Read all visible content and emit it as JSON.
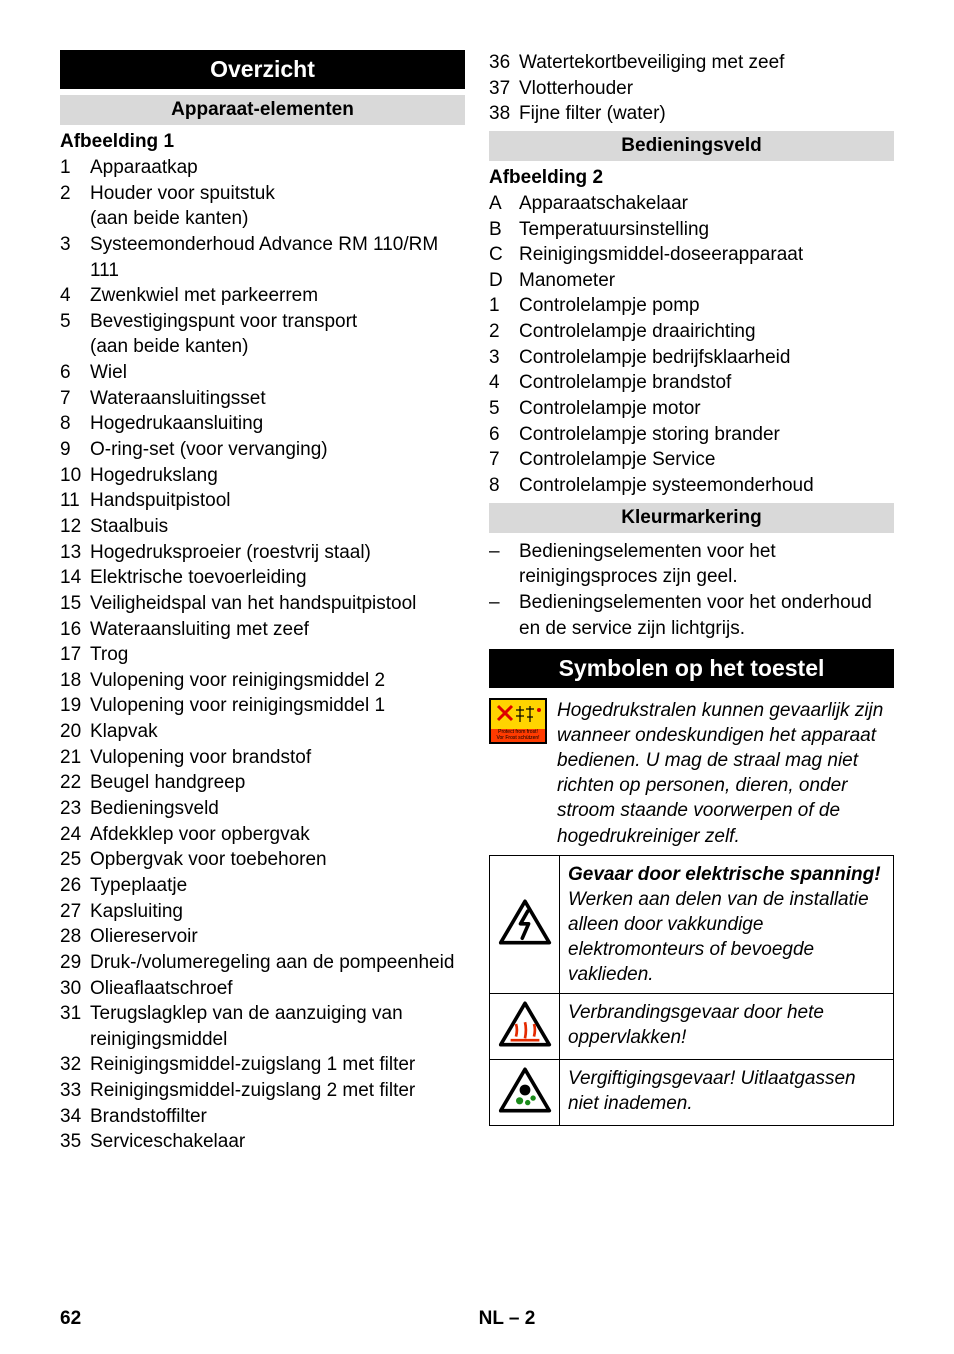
{
  "col1": {
    "overzicht": "Overzicht",
    "apparaat_elementen": "Apparaat-elementen",
    "afbeelding1": "Afbeelding 1",
    "items": [
      {
        "n": "1",
        "t": "Apparaatkap"
      },
      {
        "n": "2",
        "t": "Houder voor spuitstuk\n(aan beide kanten)"
      },
      {
        "n": "3",
        "t": "Systeemonderhoud Advance RM 110/RM 111"
      },
      {
        "n": "4",
        "t": "Zwenkwiel met parkeerrem"
      },
      {
        "n": "5",
        "t": "Bevestigingspunt voor transport\n(aan beide kanten)"
      },
      {
        "n": "6",
        "t": "Wiel"
      },
      {
        "n": "7",
        "t": "Wateraansluitingsset"
      },
      {
        "n": "8",
        "t": "Hogedrukaansluiting"
      },
      {
        "n": "9",
        "t": "O-ring-set (voor vervanging)"
      },
      {
        "n": "10",
        "t": "Hogedrukslang"
      },
      {
        "n": "11",
        "t": "Handspuitpistool"
      },
      {
        "n": "12",
        "t": "Staalbuis"
      },
      {
        "n": "13",
        "t": "Hogedruksproeier (roestvrij staal)"
      },
      {
        "n": "14",
        "t": "Elektrische toevoerleiding"
      },
      {
        "n": "15",
        "t": "Veiligheidspal van het handspuitpistool"
      },
      {
        "n": "16",
        "t": "Wateraansluiting met zeef"
      },
      {
        "n": "17",
        "t": "Trog"
      },
      {
        "n": "18",
        "t": "Vulopening voor reinigingsmiddel 2"
      },
      {
        "n": "19",
        "t": "Vulopening voor reinigingsmiddel 1"
      },
      {
        "n": "20",
        "t": "Klapvak"
      },
      {
        "n": "21",
        "t": "Vulopening voor brandstof"
      },
      {
        "n": "22",
        "t": "Beugel handgreep"
      },
      {
        "n": "23",
        "t": "Bedieningsveld"
      },
      {
        "n": "24",
        "t": "Afdekklep voor opbergvak"
      },
      {
        "n": "25",
        "t": "Opbergvak voor toebehoren"
      },
      {
        "n": "26",
        "t": "Typeplaatje"
      },
      {
        "n": "27",
        "t": "Kapsluiting"
      },
      {
        "n": "28",
        "t": "Oliereservoir"
      },
      {
        "n": "29",
        "t": "Druk-/volumeregeling aan de pompeenheid"
      },
      {
        "n": "30",
        "t": "Olieaflaatschroef"
      },
      {
        "n": "31",
        "t": "Terugslagklep van de aanzuiging van reinigingsmiddel"
      },
      {
        "n": "32",
        "t": "Reinigingsmiddel-zuigslang 1 met filter"
      },
      {
        "n": "33",
        "t": "Reinigingsmiddel-zuigslang 2 met filter"
      },
      {
        "n": "34",
        "t": "Brandstoffilter"
      },
      {
        "n": "35",
        "t": "Serviceschakelaar"
      }
    ]
  },
  "col2": {
    "top_items": [
      {
        "n": "36",
        "t": "Watertekortbeveiliging met zeef"
      },
      {
        "n": "37",
        "t": "Vlotterhouder"
      },
      {
        "n": "38",
        "t": "Fijne filter (water)"
      }
    ],
    "bedieningsveld": "Bedieningsveld",
    "afbeelding2": "Afbeelding 2",
    "items2": [
      {
        "n": "A",
        "t": "Apparaatschakelaar"
      },
      {
        "n": "B",
        "t": "Temperatuursinstelling"
      },
      {
        "n": "C",
        "t": "Reinigingsmiddel-doseerapparaat"
      },
      {
        "n": "D",
        "t": "Manometer"
      },
      {
        "n": "1",
        "t": "Controlelampje pomp"
      },
      {
        "n": "2",
        "t": "Controlelampje draairichting"
      },
      {
        "n": "3",
        "t": "Controlelampje bedrijfsklaarheid"
      },
      {
        "n": "4",
        "t": "Controlelampje brandstof"
      },
      {
        "n": "5",
        "t": "Controlelampje motor"
      },
      {
        "n": "6",
        "t": "Controlelampje storing brander"
      },
      {
        "n": "7",
        "t": "Controlelampje Service"
      },
      {
        "n": "8",
        "t": "Controlelampje systeemonderhoud"
      }
    ],
    "kleurmarkering": "Kleurmarkering",
    "dash1": "Bedieningselementen voor het reinigingsproces zijn geel.",
    "dash2": "Bedieningselementen voor het onderhoud en de service zijn lichtgrijs.",
    "symbolen": "Symbolen op het toestel",
    "jet_text": "Hogedrukstralen kunnen gevaarlijk zijn wanneer ondeskundigen het apparaat bedienen. U mag de straal mag niet richten op personen, dieren, onder stroom staande voorwerpen of de hogedrukreiniger zelf.",
    "warn1_title": "Gevaar door elektrische spanning!",
    "warn1_body": "Werken aan delen van de installatie alleen door vakkundige elektromonteurs of bevoegde vaklieden.",
    "warn2": "Verbrandingsgevaar door hete oppervlakken!",
    "warn3": "Vergiftigingsgevaar! Uitlaatgassen niet inademen.",
    "label_bottom": "Protect from frost!\nVor Frost schützen!"
  },
  "footer": {
    "page": "62",
    "lang": "NL – 2"
  }
}
